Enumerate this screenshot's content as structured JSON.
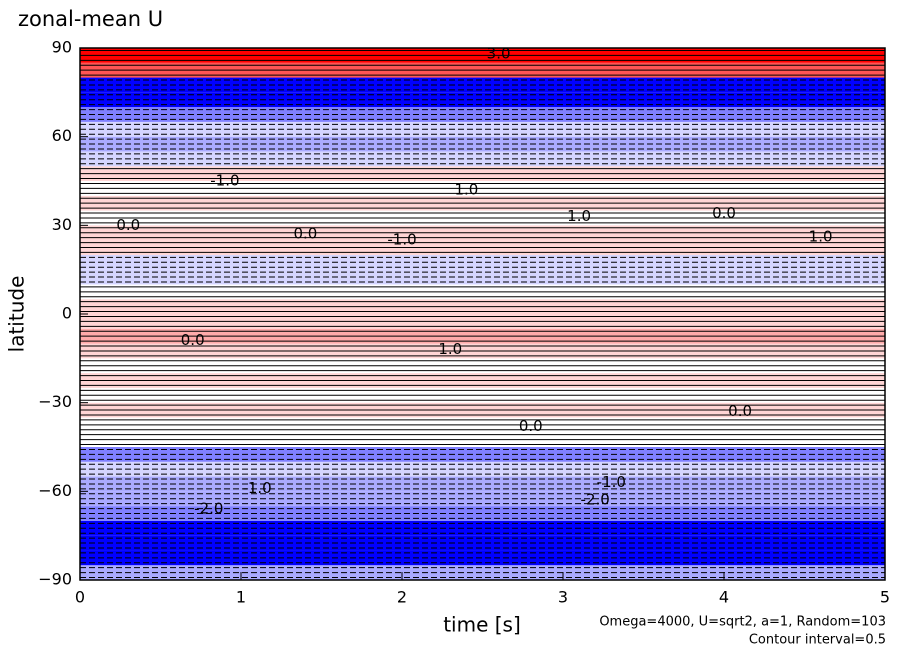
{
  "chart_data": {
    "type": "contour",
    "title": "zonal-mean U",
    "xlabel": "time [s]",
    "ylabel": "latitude",
    "annotations": [
      "Omega=4000, U=sqrt2, a=1, Random=103",
      "Contour interval=0.5"
    ],
    "xlim": [
      0,
      5
    ],
    "ylim": [
      -90,
      90
    ],
    "xticks": [
      0,
      1,
      2,
      3,
      4,
      5
    ],
    "yticks": [
      {
        "value": -90,
        "label": "−90"
      },
      {
        "value": -60,
        "label": "−60"
      },
      {
        "value": -30,
        "label": "−30"
      },
      0,
      30,
      60,
      90
    ],
    "y": [
      -87.5,
      -82.5,
      -77.5,
      -72.5,
      -67.5,
      -62.5,
      -57.5,
      -52.5,
      -47.5,
      -42.5,
      -37.5,
      -32.5,
      -27.5,
      -22.5,
      -17.5,
      -12.5,
      -7.5,
      -2.5,
      2.5,
      7.5,
      12.5,
      17.5,
      22.5,
      27.5,
      32.5,
      37.5,
      42.5,
      47.5,
      52.5,
      57.5,
      62.5,
      67.5,
      72.5,
      77.5,
      82.5,
      87.5
    ],
    "values": [
      -1,
      -4,
      -4,
      -4,
      -1.5,
      -1,
      -1,
      -0.5,
      -1.5,
      0,
      0,
      0.5,
      0,
      0.5,
      0,
      0.5,
      1,
      0.5,
      0.5,
      0,
      -0.5,
      -0.5,
      0.5,
      0.5,
      0,
      0.5,
      0,
      0.5,
      -0.5,
      -1,
      -0.5,
      -1.5,
      -4,
      -4,
      2,
      3
    ],
    "contour_labels": [
      {
        "time": 0.3,
        "latitude": 30,
        "value": 0,
        "label": "0.0"
      },
      {
        "time": 0.7,
        "latitude": -9,
        "value": 0,
        "label": "0.0"
      },
      {
        "time": 0.9,
        "latitude": 45,
        "value": -1,
        "label": "-1.0"
      },
      {
        "time": 1.4,
        "latitude": 27,
        "value": 0,
        "label": "0.0"
      },
      {
        "time": 2.0,
        "latitude": 25,
        "value": -1,
        "label": "-1.0"
      },
      {
        "time": 2.4,
        "latitude": 42,
        "value": 1,
        "label": "1.0"
      },
      {
        "time": 2.3,
        "latitude": -12,
        "value": 1,
        "label": "1.0"
      },
      {
        "time": 2.8,
        "latitude": -38,
        "value": 0,
        "label": "0.0"
      },
      {
        "time": 3.1,
        "latitude": 33,
        "value": 1,
        "label": "1.0"
      },
      {
        "time": 3.3,
        "latitude": -57,
        "value": -1,
        "label": "-1.0"
      },
      {
        "time": 3.2,
        "latitude": -63,
        "value": -2,
        "label": "-2.0"
      },
      {
        "time": 4.0,
        "latitude": 34,
        "value": 0,
        "label": "0.0"
      },
      {
        "time": 4.1,
        "latitude": -33,
        "value": 0,
        "label": "0.0"
      },
      {
        "time": 4.6,
        "latitude": 26,
        "value": 1,
        "label": "1.0"
      },
      {
        "time": 2.6,
        "latitude": 88,
        "value": 3,
        "label": "3.0"
      },
      {
        "time": 1.1,
        "latitude": -59,
        "value": -1,
        "label": "-1.0"
      },
      {
        "time": 0.8,
        "latitude": -66,
        "value": -2,
        "label": "-2.0"
      }
    ]
  }
}
